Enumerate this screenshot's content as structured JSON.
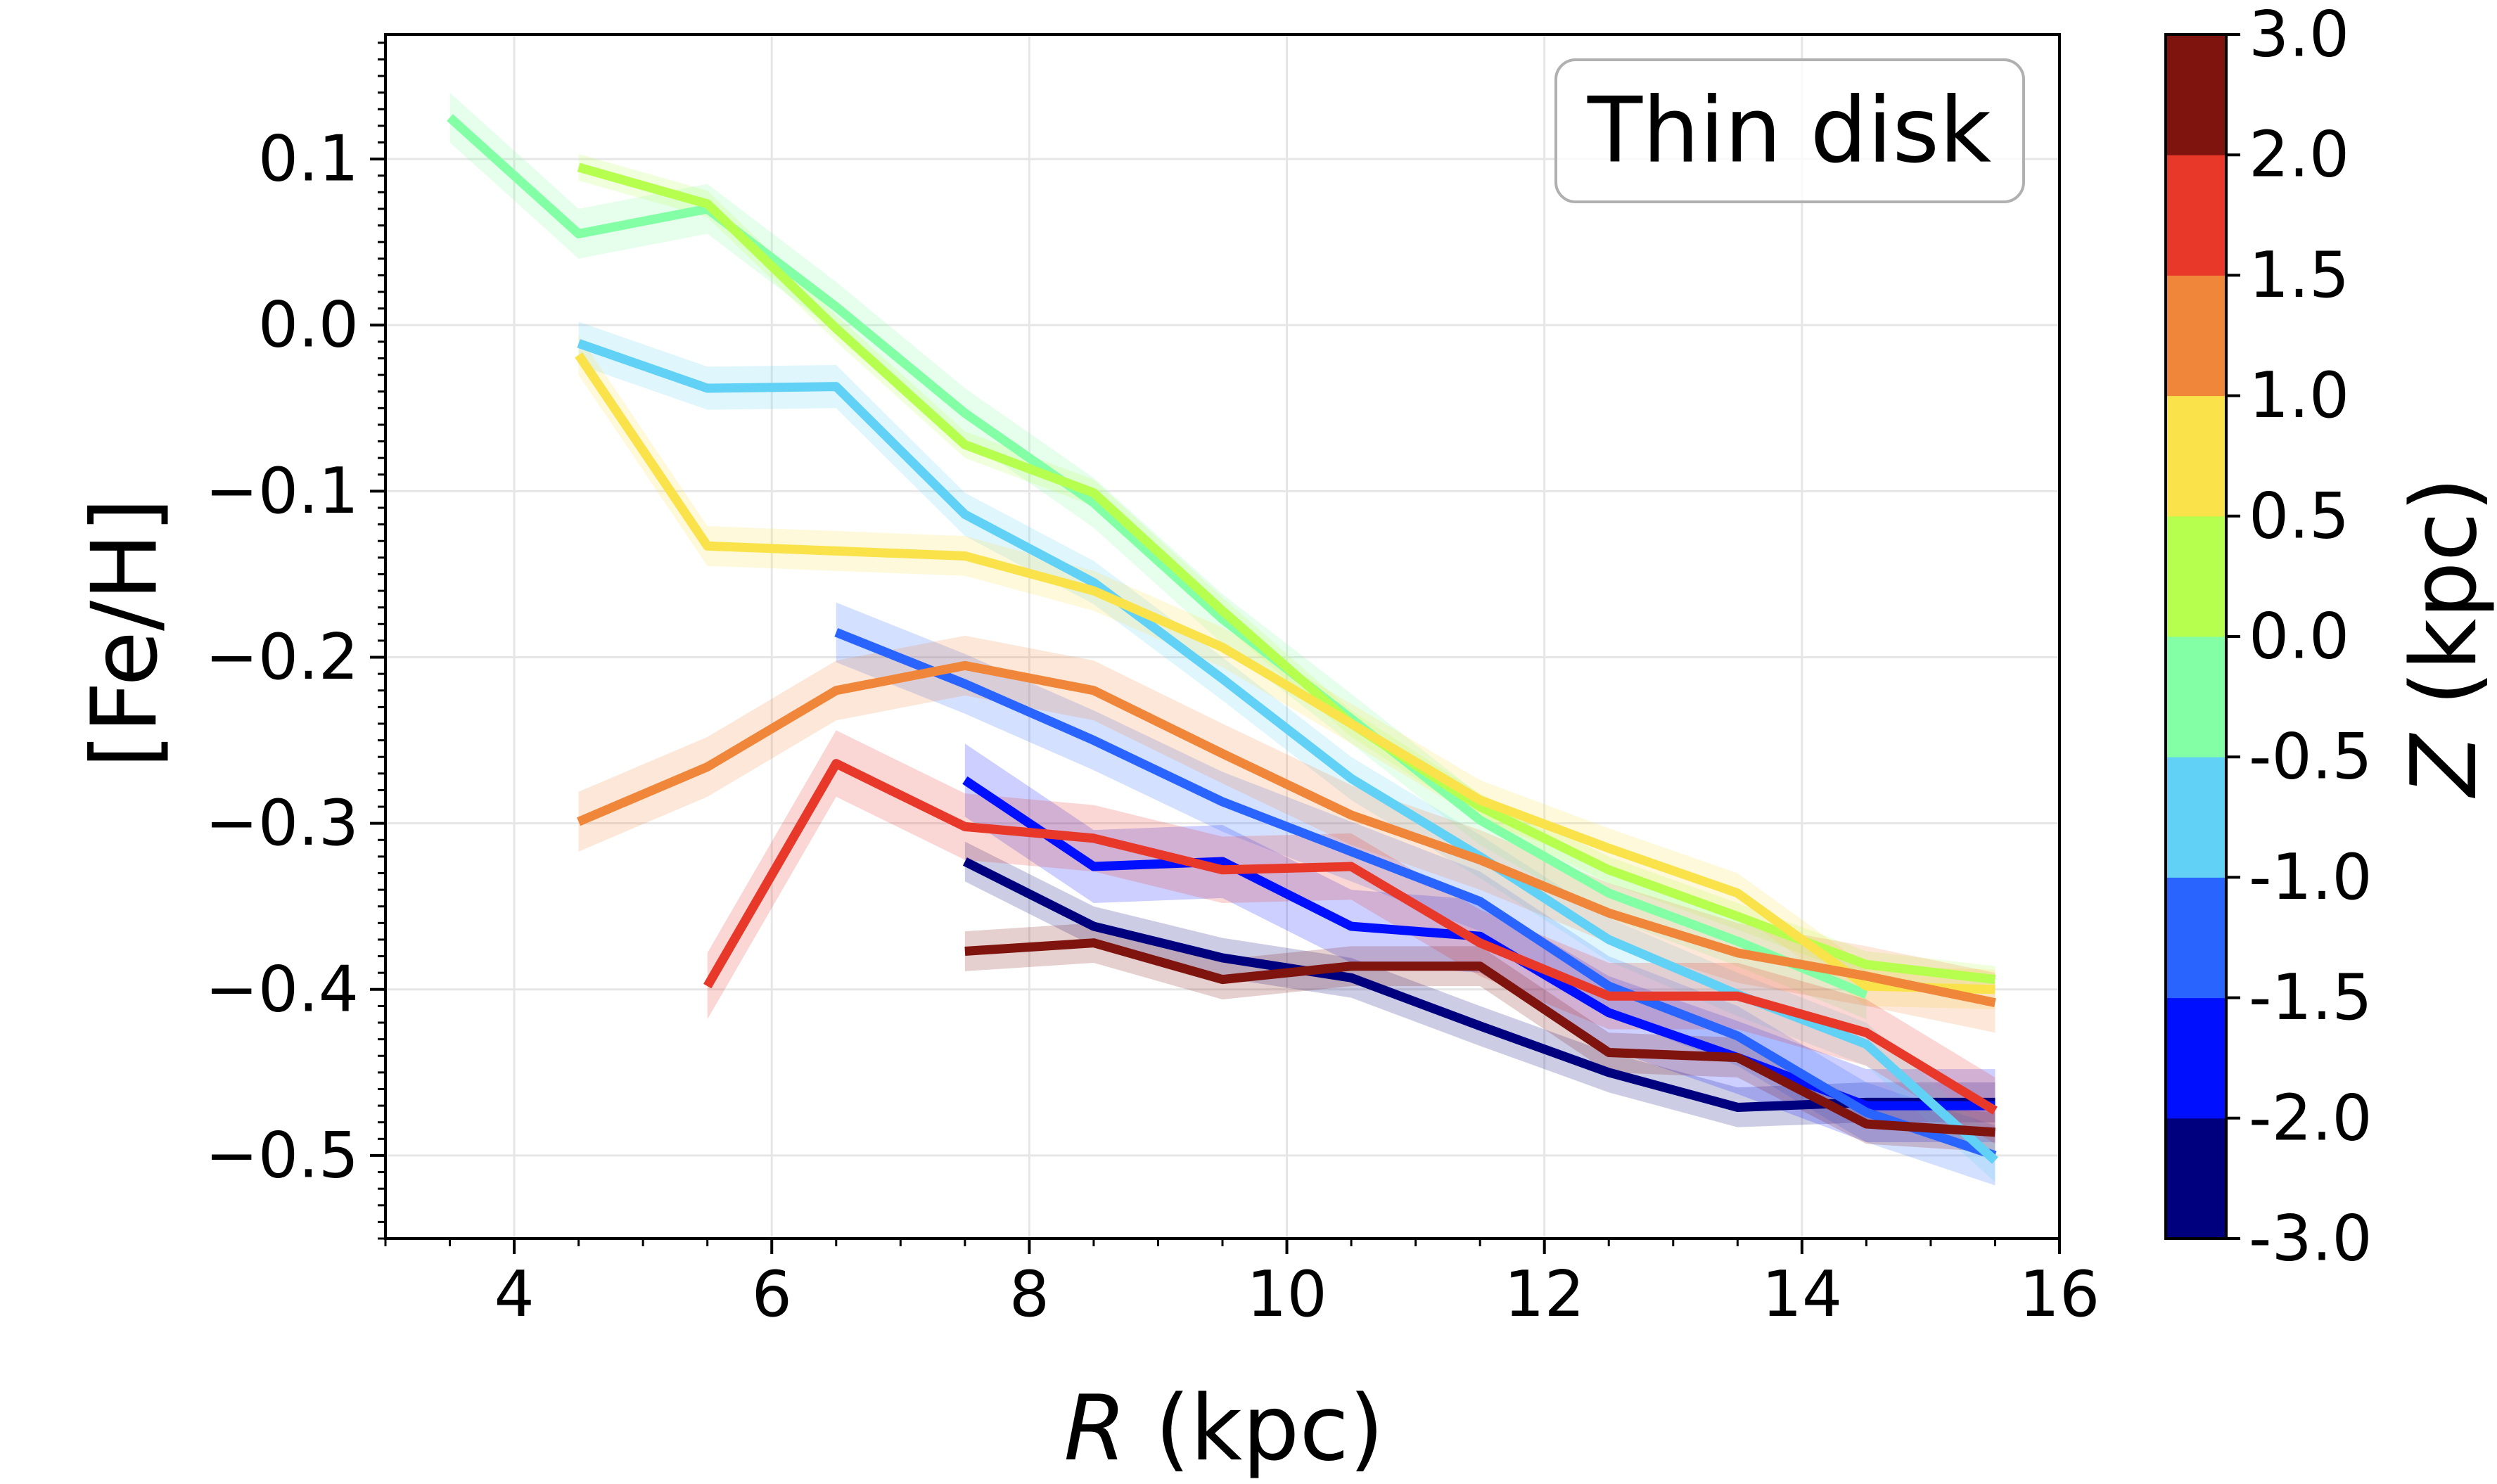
{
  "chart_data": {
    "type": "line",
    "annotation": "Thin disk",
    "xlabel": "R (kpc)",
    "xlabel_italic": "R",
    "xlabel_rest": " (kpc)",
    "ylabel": "[Fe/H]",
    "xlim": [
      3,
      16
    ],
    "ylim": [
      -0.55,
      0.175
    ],
    "xticks": [
      4,
      6,
      8,
      10,
      12,
      14,
      16
    ],
    "xtick_labels": [
      "4",
      "6",
      "8",
      "10",
      "12",
      "14",
      "16"
    ],
    "yticks": [
      0.1,
      0.0,
      -0.1,
      -0.2,
      -0.3,
      -0.4,
      -0.5
    ],
    "ytick_labels": [
      "0.1",
      "0.0",
      "−0.1",
      "−0.2",
      "−0.3",
      "−0.4",
      "−0.5"
    ],
    "grid": true,
    "colorbar": {
      "label": "Z (kpc)",
      "label_italic": "Z",
      "label_rest": " (kpc)",
      "tick_labels": [
        "-3.0",
        "-2.0",
        "-1.5",
        "-1.0",
        "-0.5",
        "0.0",
        "0.5",
        "1.0",
        "1.5",
        "2.0",
        "3.0"
      ],
      "bins": [
        {
          "color": "#00007f"
        },
        {
          "color": "#0010ff"
        },
        {
          "color": "#2a64ff"
        },
        {
          "color": "#62d1f6"
        },
        {
          "color": "#83ffa6"
        },
        {
          "color": "#b6ff4f"
        },
        {
          "color": "#fae34a"
        },
        {
          "color": "#f0863a"
        },
        {
          "color": "#e8382a"
        },
        {
          "color": "#7f130e"
        }
      ]
    },
    "series": [
      {
        "z_range": [
          -3.0,
          -2.0
        ],
        "color": "#00007f",
        "err": 0.012,
        "x": [
          7.5,
          8.5,
          9.5,
          10.5,
          11.5,
          12.5,
          13.5,
          14.5,
          15.5
        ],
        "y": [
          -0.323,
          -0.362,
          -0.381,
          -0.393,
          -0.422,
          -0.45,
          -0.471,
          -0.468,
          -0.468
        ]
      },
      {
        "z_range": [
          -2.0,
          -1.5
        ],
        "color": "#0010ff",
        "err": 0.022,
        "x": [
          7.5,
          8.5,
          9.5,
          10.5,
          11.5,
          12.5,
          13.5,
          14.5,
          15.5
        ],
        "y": [
          -0.274,
          -0.326,
          -0.323,
          -0.362,
          -0.368,
          -0.414,
          -0.441,
          -0.47,
          -0.47
        ]
      },
      {
        "z_range": [
          -1.5,
          -1.0
        ],
        "color": "#2a64ff",
        "err": 0.018,
        "x": [
          6.5,
          7.5,
          8.5,
          9.5,
          10.5,
          11.5,
          12.5,
          13.5,
          14.5,
          15.5
        ],
        "y": [
          -0.185,
          -0.216,
          -0.25,
          -0.287,
          -0.317,
          -0.347,
          -0.398,
          -0.428,
          -0.474,
          -0.5
        ]
      },
      {
        "z_range": [
          -1.0,
          -0.5
        ],
        "color": "#62d1f6",
        "err": 0.013,
        "x": [
          4.5,
          5.5,
          6.5,
          7.5,
          8.5,
          9.5,
          10.5,
          11.5,
          12.5,
          13.5,
          14.5,
          15.5
        ],
        "y": [
          -0.011,
          -0.038,
          -0.037,
          -0.114,
          -0.155,
          -0.213,
          -0.273,
          -0.32,
          -0.37,
          -0.403,
          -0.433,
          -0.503
        ]
      },
      {
        "z_range": [
          -0.5,
          0.0
        ],
        "color": "#83ffa6",
        "err": 0.015,
        "x": [
          3.5,
          4.5,
          5.5,
          6.5,
          7.5,
          8.5,
          9.5,
          10.5,
          11.5,
          12.5,
          13.5,
          14.5
        ],
        "y": [
          0.125,
          0.055,
          0.07,
          0.011,
          -0.053,
          -0.107,
          -0.177,
          -0.237,
          -0.298,
          -0.342,
          -0.371,
          -0.403
        ]
      },
      {
        "z_range": [
          0.0,
          0.5
        ],
        "color": "#b6ff4f",
        "err": 0.008,
        "x": [
          4.5,
          5.5,
          6.5,
          7.5,
          8.5,
          9.5,
          10.5,
          11.5,
          12.5,
          13.5,
          14.5,
          15.5
        ],
        "y": [
          0.095,
          0.073,
          -0.002,
          -0.072,
          -0.101,
          -0.172,
          -0.24,
          -0.29,
          -0.328,
          -0.356,
          -0.385,
          -0.394
        ]
      },
      {
        "z_range": [
          0.5,
          1.0
        ],
        "color": "#fae34a",
        "err": 0.012,
        "x": [
          4.5,
          5.5,
          6.5,
          7.5,
          8.5,
          9.5,
          10.5,
          11.5,
          12.5,
          13.5,
          14.5,
          15.5
        ],
        "y": [
          -0.018,
          -0.133,
          -0.136,
          -0.139,
          -0.16,
          -0.194,
          -0.24,
          -0.286,
          -0.315,
          -0.342,
          -0.398,
          -0.4
        ]
      },
      {
        "z_range": [
          1.0,
          1.5
        ],
        "color": "#f0863a",
        "err": 0.018,
        "x": [
          4.5,
          5.5,
          6.5,
          7.5,
          8.5,
          9.5,
          10.5,
          11.5,
          12.5,
          13.5,
          14.5,
          15.5
        ],
        "y": [
          -0.299,
          -0.266,
          -0.22,
          -0.205,
          -0.22,
          -0.258,
          -0.295,
          -0.322,
          -0.354,
          -0.378,
          -0.392,
          -0.408
        ]
      },
      {
        "z_range": [
          1.5,
          2.0
        ],
        "color": "#e8382a",
        "err": 0.02,
        "x": [
          5.5,
          6.5,
          7.5,
          8.5,
          9.5,
          10.5,
          11.5,
          12.5,
          13.5,
          14.5,
          15.5
        ],
        "y": [
          -0.398,
          -0.264,
          -0.302,
          -0.309,
          -0.328,
          -0.326,
          -0.372,
          -0.404,
          -0.404,
          -0.426,
          -0.473
        ]
      },
      {
        "z_range": [
          2.0,
          3.0
        ],
        "color": "#7f130e",
        "err": 0.012,
        "x": [
          7.5,
          8.5,
          9.5,
          10.5,
          11.5,
          12.5,
          13.5,
          14.5,
          15.5
        ],
        "y": [
          -0.377,
          -0.372,
          -0.394,
          -0.386,
          -0.386,
          -0.438,
          -0.441,
          -0.481,
          -0.486
        ]
      }
    ]
  }
}
